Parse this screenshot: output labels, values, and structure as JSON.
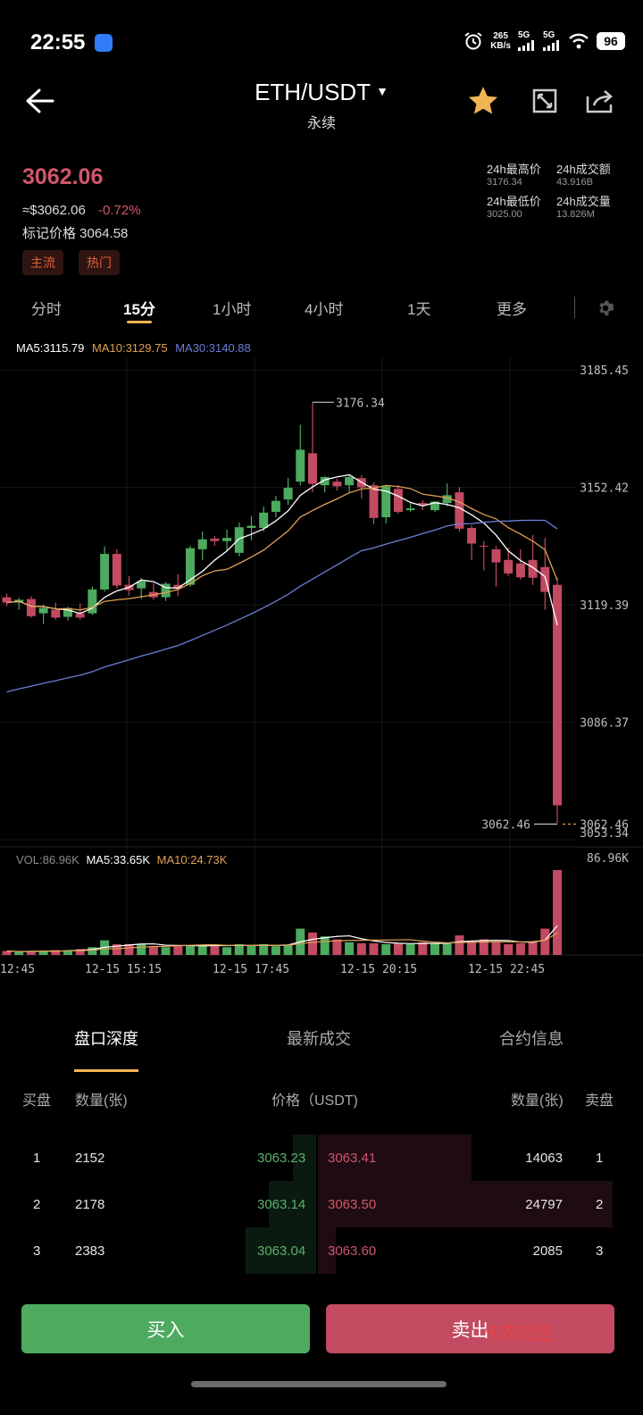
{
  "status_bar": {
    "time": "22:55",
    "net_speed_top": "265",
    "net_speed_bottom": "KB/s",
    "sig1": "5G",
    "sig2": "5G",
    "battery": "96"
  },
  "header": {
    "pair": "ETH/USDT",
    "sub": "永续",
    "back_icon": "arrow-left-icon",
    "star_icon": "star-icon",
    "expand_icon": "expand-icon",
    "share_icon": "share-icon"
  },
  "ticker": {
    "last_price": "3062.06",
    "approx": "≈$3062.06",
    "change": "-0.72%",
    "mark_price": "标记价格 3064.58",
    "tags": [
      "主流",
      "热门"
    ],
    "high_label": "24h最高价",
    "high_value": "3176.34",
    "turnover_label": "24h成交额",
    "turnover_value": "43.916B",
    "low_label": "24h最低价",
    "low_value": "3025.00",
    "volume_label": "24h成交量",
    "volume_value": "13.826M"
  },
  "timeframes": [
    "分时",
    "15分",
    "1小时",
    "4小时",
    "1天",
    "更多"
  ],
  "active_timeframe": "15分",
  "ma": {
    "ma5": "MA5:3115.79",
    "ma10": "MA10:3129.75",
    "ma30": "MA30:3140.88"
  },
  "vol_legend": {
    "vol": "VOL:86.96K",
    "ma5": "MA5:33.65K",
    "ma10": "MA10:24.73K"
  },
  "colors": {
    "up": "#4daa5f",
    "down": "#c24a61",
    "ma5": "#ffffff",
    "ma10": "#e0a052",
    "ma30": "#6a7fd8",
    "accent": "#f2b556"
  },
  "chart_data": {
    "type": "candlestick",
    "y_ticks": [
      "3185.45",
      "3152.42",
      "3119.39",
      "3086.37",
      "3053.34"
    ],
    "ylim": [
      3053.34,
      3185.45
    ],
    "x_labels": [
      "12:45",
      "12-15 15:15",
      "12-15 17:45",
      "12-15 20:15",
      "12-15 22:45"
    ],
    "max_label": "3176.34",
    "last_label": "3062.46",
    "current_price_tag": "3062.46",
    "vol_max_label": "86.96K",
    "candles": [
      [
        3121.5,
        3122.5,
        3119.0,
        3120.0
      ],
      [
        3120.0,
        3121.3,
        3118.0,
        3120.8
      ],
      [
        3121.0,
        3121.8,
        3115.8,
        3116.2
      ],
      [
        3117.0,
        3119.5,
        3114.0,
        3118.5
      ],
      [
        3118.0,
        3120.0,
        3115.2,
        3115.8
      ],
      [
        3116.0,
        3118.8,
        3115.0,
        3118.5
      ],
      [
        3117.0,
        3119.8,
        3115.2,
        3115.8
      ],
      [
        3117.0,
        3124.5,
        3116.5,
        3123.7
      ],
      [
        3123.7,
        3135.8,
        3123.0,
        3133.7
      ],
      [
        3133.7,
        3135.0,
        3124.0,
        3124.8
      ],
      [
        3125.0,
        3127.5,
        3122.0,
        3123.5
      ],
      [
        3124.0,
        3127.0,
        3121.0,
        3126.0
      ],
      [
        3123.0,
        3125.5,
        3120.8,
        3121.5
      ],
      [
        3121.5,
        3125.8,
        3120.5,
        3125.3
      ],
      [
        3125.0,
        3128.0,
        3121.8,
        3124.0
      ],
      [
        3125.0,
        3136.0,
        3124.5,
        3135.3
      ],
      [
        3135.0,
        3140.0,
        3132.0,
        3137.8
      ],
      [
        3138.0,
        3138.8,
        3136.0,
        3137.3
      ],
      [
        3137.3,
        3140.5,
        3134.5,
        3138.2
      ],
      [
        3134.0,
        3142.5,
        3133.0,
        3141.2
      ],
      [
        3141.0,
        3144.3,
        3137.5,
        3141.6
      ],
      [
        3141.0,
        3147.0,
        3140.0,
        3145.3
      ],
      [
        3145.5,
        3150.0,
        3144.0,
        3148.6
      ],
      [
        3149.0,
        3155.0,
        3147.5,
        3152.3
      ],
      [
        3154.0,
        3170.0,
        3153.0,
        3163.0
      ],
      [
        3162.0,
        3176.34,
        3151.0,
        3153.4
      ],
      [
        3153.0,
        3155.5,
        3151.0,
        3155.3
      ],
      [
        3154.0,
        3154.8,
        3151.5,
        3152.7
      ],
      [
        3153.0,
        3156.0,
        3151.0,
        3155.3
      ],
      [
        3155.0,
        3155.8,
        3149.3,
        3152.4
      ],
      [
        3153.0,
        3153.8,
        3142.0,
        3143.8
      ],
      [
        3144.0,
        3153.0,
        3142.3,
        3152.7
      ],
      [
        3152.0,
        3153.0,
        3145.0,
        3145.5
      ],
      [
        3146.0,
        3148.0,
        3145.5,
        3146.5
      ],
      [
        3148.0,
        3148.8,
        3146.0,
        3147.4
      ],
      [
        3146.0,
        3148.5,
        3145.5,
        3148.4
      ],
      [
        3148.0,
        3153.5,
        3147.0,
        3150.2
      ],
      [
        3151.0,
        3152.5,
        3140.0,
        3140.8
      ],
      [
        3141.0,
        3141.8,
        3132.0,
        3136.6
      ],
      [
        3136.0,
        3137.3,
        3129.0,
        3135.9
      ],
      [
        3135.0,
        3136.0,
        3124.5,
        3131.3
      ],
      [
        3132.0,
        3135.5,
        3127.5,
        3128.2
      ],
      [
        3131.0,
        3135.0,
        3126.5,
        3127.1
      ],
      [
        3132.0,
        3139.0,
        3125.0,
        3127.0
      ],
      [
        3130.0,
        3138.2,
        3118.0,
        3123.0
      ],
      [
        3125.0,
        3127.0,
        3058.0,
        3063.0
      ]
    ],
    "volumes": [
      4,
      3,
      4,
      4,
      5,
      5,
      6,
      8,
      15,
      11,
      11,
      11,
      9,
      8,
      10,
      10,
      10,
      10,
      8,
      11,
      10,
      11,
      9,
      10,
      27,
      23,
      19,
      16,
      13,
      12,
      12,
      11,
      12,
      11,
      13,
      12,
      12,
      20,
      14,
      16,
      13,
      11,
      12,
      13,
      27,
      87
    ]
  },
  "orderbook": {
    "tabs": [
      "盘口深度",
      "最新成交",
      "合约信息"
    ],
    "head_buy": "买盘",
    "head_qty_left": "数量(张)",
    "head_price": "价格（USDT)",
    "head_qty_right": "数量(张)",
    "head_sell": "卖盘",
    "rows": [
      {
        "idx": "1",
        "bid_qty": "2152",
        "bid_price": "3063.23",
        "ask_price": "3063.41",
        "ask_qty": "14063",
        "idx_r": "1",
        "bid_depth": 0.08,
        "ask_depth": 0.52
      },
      {
        "idx": "2",
        "bid_qty": "2178",
        "bid_price": "3063.14",
        "ask_price": "3063.50",
        "ask_qty": "24797",
        "idx_r": "2",
        "bid_depth": 0.16,
        "ask_depth": 1.0
      },
      {
        "idx": "3",
        "bid_qty": "2383",
        "bid_price": "3063.04",
        "ask_price": "3063.60",
        "ask_qty": "2085",
        "idx_r": "3",
        "bid_depth": 0.24,
        "ask_depth": 0.06
      }
    ]
  },
  "actions": {
    "buy": "买入",
    "sell": "卖出"
  },
  "watermark": "卡农社区"
}
